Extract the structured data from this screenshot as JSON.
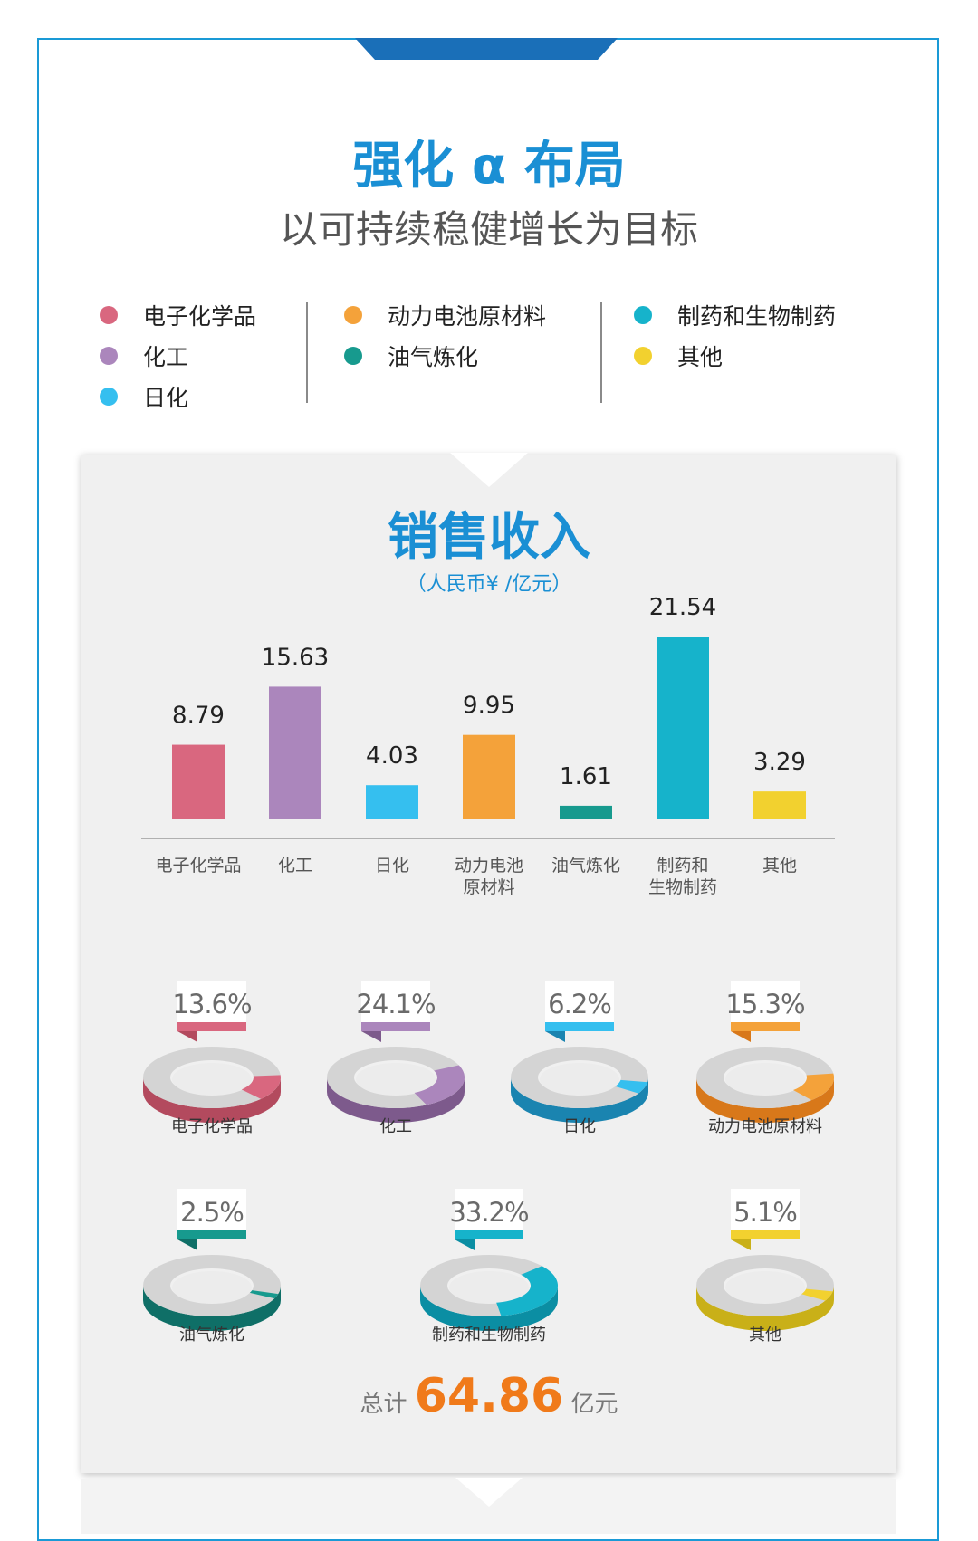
{
  "header": {
    "title": "强化 α 布局",
    "subtitle": "以可持续稳健增长为目标"
  },
  "legend": [
    {
      "label": "电子化学品",
      "color": "#d9677f"
    },
    {
      "label": "化工",
      "color": "#ab86bc"
    },
    {
      "label": "日化",
      "color": "#35bfef"
    },
    {
      "label": "动力电池原材料",
      "color": "#f4a23a"
    },
    {
      "label": "油气炼化",
      "color": "#179a8e"
    },
    {
      "label": "制药和生物制药",
      "color": "#16b3cb"
    },
    {
      "label": "其他",
      "color": "#f2d12f"
    }
  ],
  "chart_data": [
    {
      "type": "bar",
      "title": "销售收入",
      "unit": "（人民币¥ /亿元）",
      "categories": [
        "电子化学品",
        "化工",
        "日化",
        "动力电池原材料",
        "油气炼化",
        "制药和生物制药",
        "其他"
      ],
      "category_display": [
        [
          "电子化学品"
        ],
        [
          "化工"
        ],
        [
          "日化"
        ],
        [
          "动力电池",
          "原材料"
        ],
        [
          "油气炼化"
        ],
        [
          "制药和",
          "生物制药"
        ],
        [
          "其他"
        ]
      ],
      "values": [
        8.79,
        15.63,
        4.03,
        9.95,
        1.61,
        21.54,
        3.29
      ],
      "value_labels": [
        "8.79",
        "15.63",
        "4.03",
        "9.95",
        "1.61",
        "21.54",
        "3.29"
      ],
      "colors": [
        "#d9677f",
        "#ab86bc",
        "#35bfef",
        "#f4a23a",
        "#179a8e",
        "#16b3cb",
        "#f2d12f"
      ]
    },
    {
      "type": "pie",
      "categories": [
        "电子化学品",
        "化工",
        "日化",
        "动力电池原材料",
        "油气炼化",
        "制药和生物制药",
        "其他"
      ],
      "values": [
        13.6,
        24.1,
        6.2,
        15.3,
        2.5,
        33.2,
        5.1
      ],
      "labels": [
        "13.6%",
        "24.1%",
        "6.2%",
        "15.3%",
        "2.5%",
        "33.2%",
        "5.1%"
      ],
      "colors": [
        "#d9677f",
        "#ab86bc",
        "#35bfef",
        "#f4a23a",
        "#179a8e",
        "#16b3cb",
        "#f2d12f"
      ],
      "dark_colors": [
        "#b34a5e",
        "#7d5a8c",
        "#1a84b0",
        "#d8781a",
        "#0f6f67",
        "#0b8ea3",
        "#c9b018"
      ]
    }
  ],
  "total": {
    "prefix": "总计",
    "value": "64.86",
    "suffix": "亿元"
  }
}
